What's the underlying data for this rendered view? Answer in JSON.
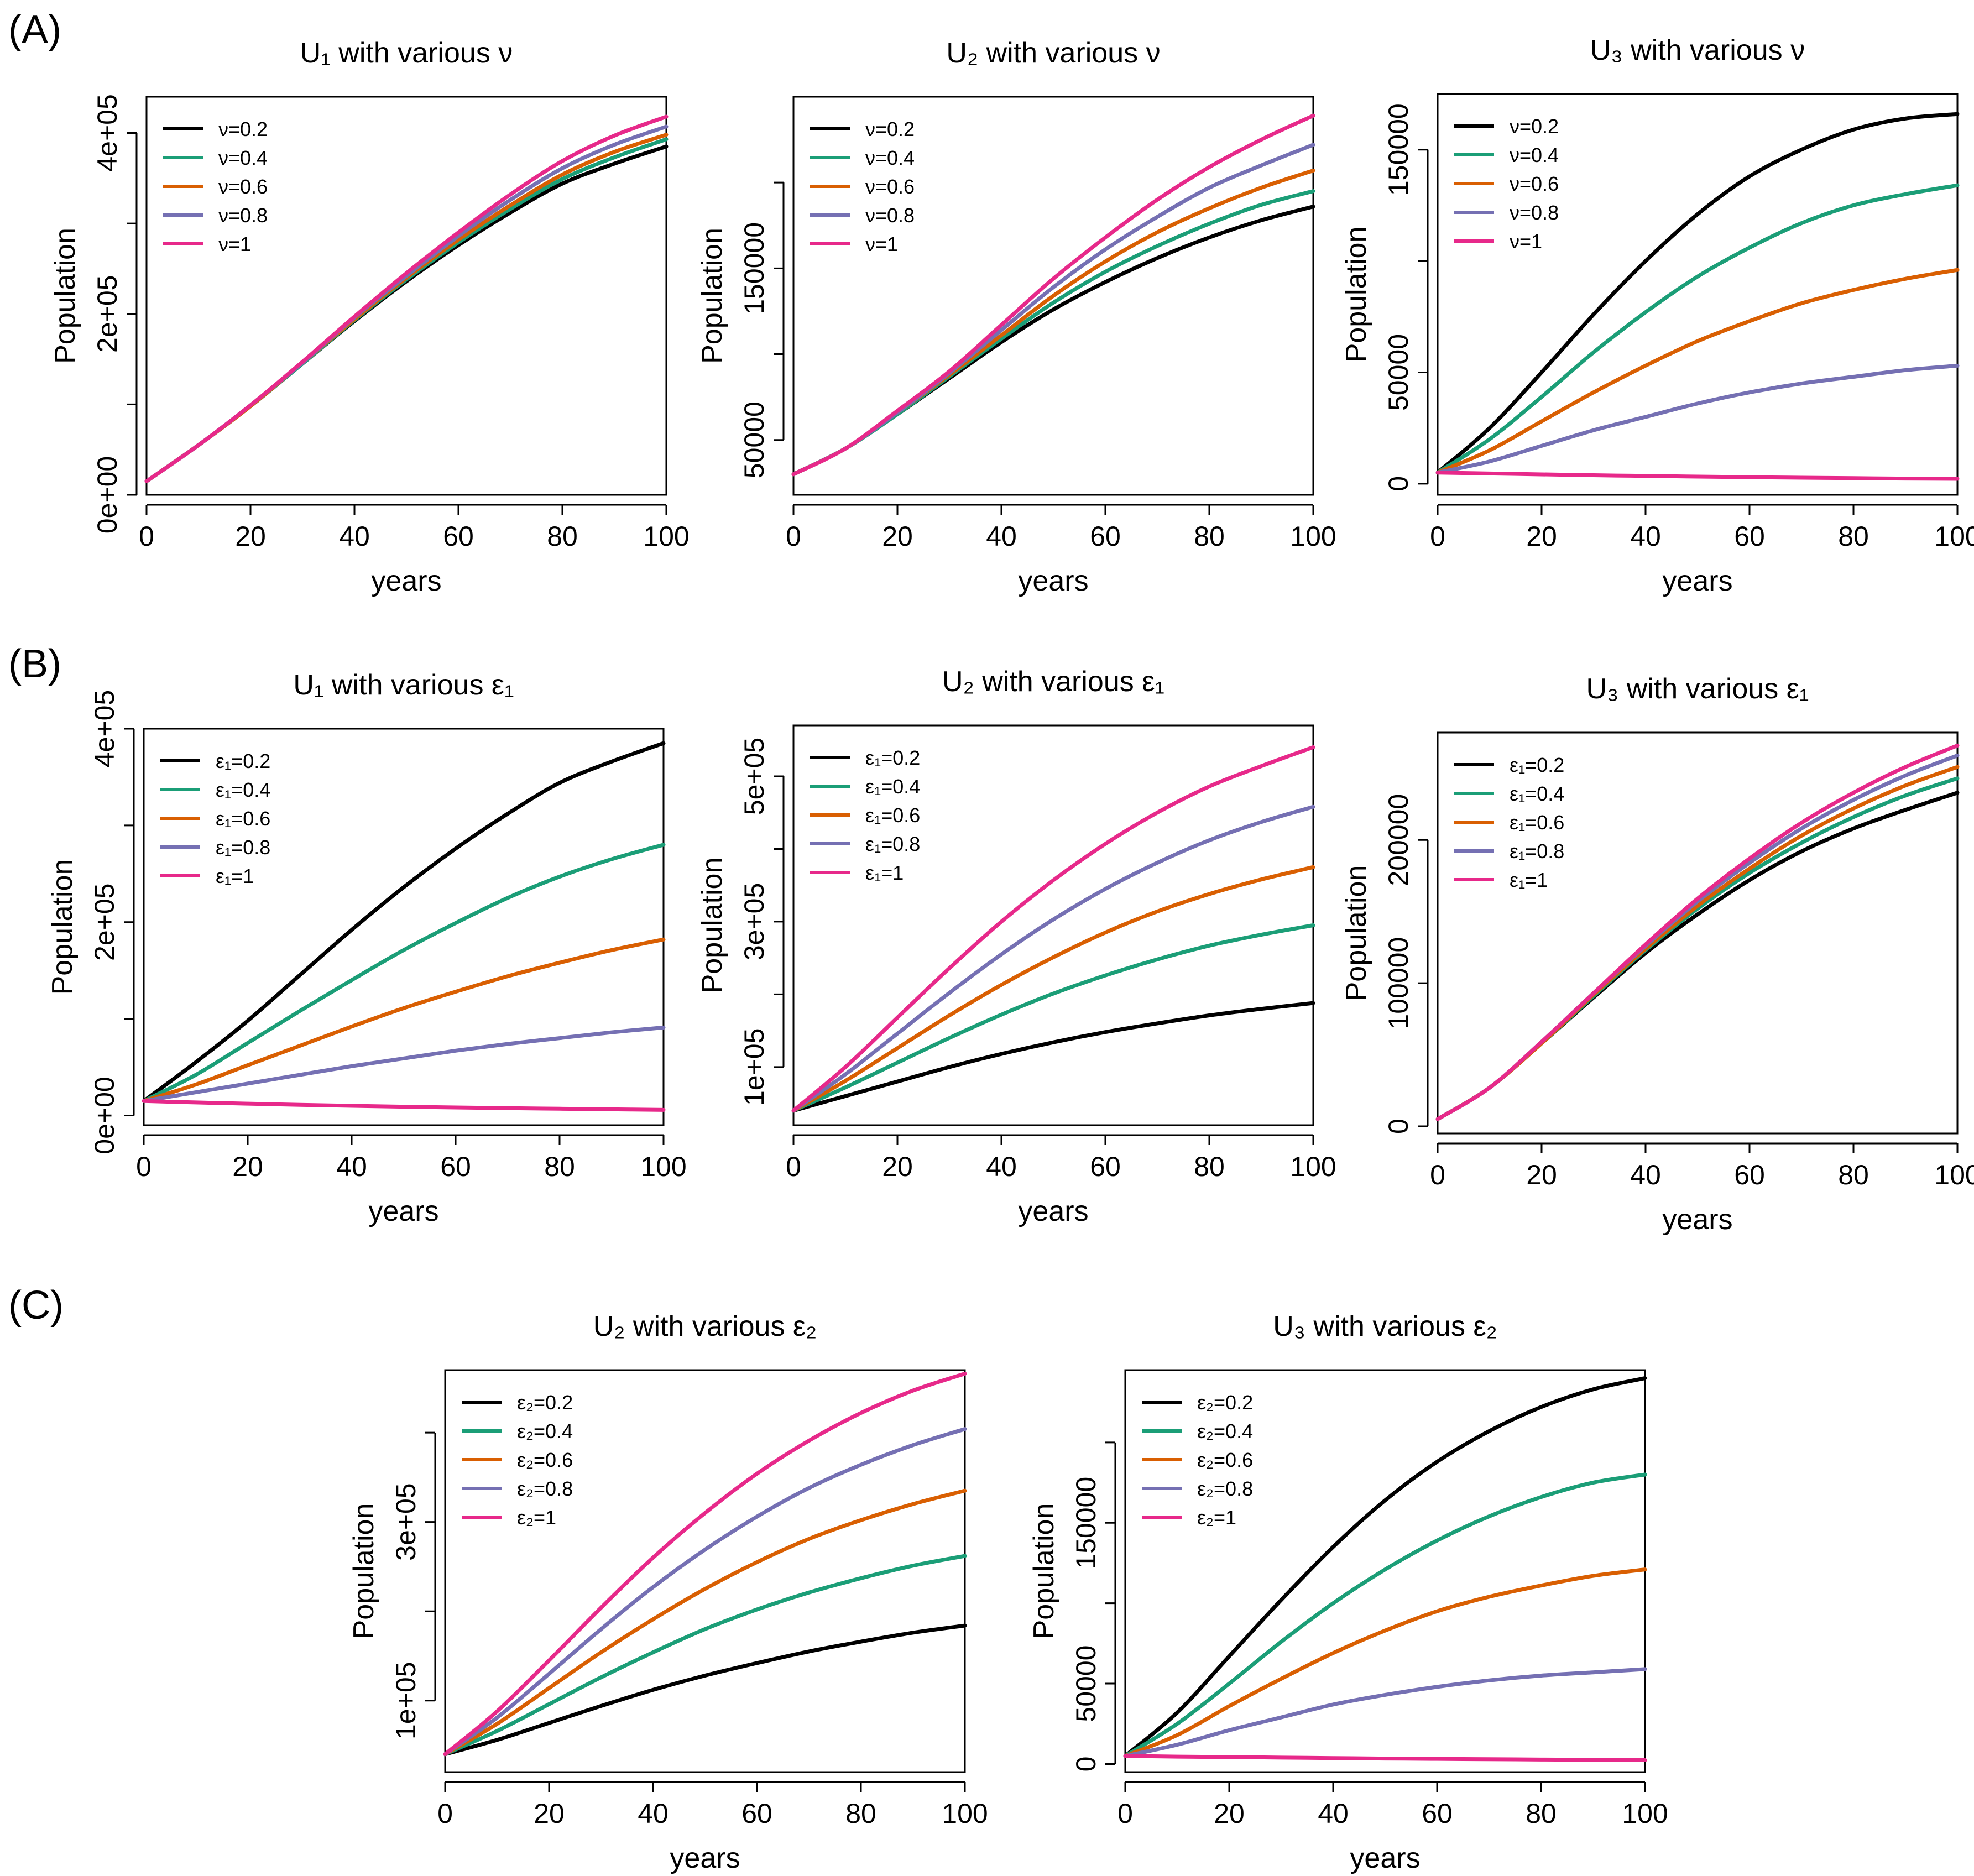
{
  "figure": {
    "panel_labels": [
      "(A)",
      "(B)",
      "(C)"
    ]
  },
  "colors": {
    "black": "#000000",
    "green": "#1b9e77",
    "orange": "#d95f02",
    "purple": "#7570b3",
    "pink": "#e7298a"
  },
  "chart_data": [
    {
      "id": "a1",
      "type": "line",
      "title": "U₁ with various ν",
      "xlabel": "years",
      "ylabel": "Population",
      "xlim": [
        0,
        100
      ],
      "ylim": [
        0,
        440000
      ],
      "x_ticks": [
        0,
        20,
        40,
        60,
        80,
        100
      ],
      "y_ticks": [
        0,
        100000,
        200000,
        300000,
        400000
      ],
      "y_tick_labels": [
        "0e+00",
        "",
        "2e+05",
        "",
        "4e+05"
      ],
      "x": [
        0,
        10,
        20,
        30,
        40,
        50,
        60,
        70,
        80,
        90,
        100
      ],
      "series": [
        {
          "name": "ν=0.2",
          "color": "#000000",
          "values": [
            15000,
            55000,
            98000,
            145000,
            192000,
            236000,
            276000,
            312000,
            344000,
            366000,
            385000
          ]
        },
        {
          "name": "ν=0.4",
          "color": "#1b9e77",
          "values": [
            15000,
            55000,
            98000,
            145000,
            193000,
            238000,
            279000,
            316000,
            349000,
            373000,
            393000
          ]
        },
        {
          "name": "ν=0.6",
          "color": "#d95f02",
          "values": [
            15000,
            55000,
            98000,
            146000,
            194000,
            240000,
            282000,
            320000,
            354000,
            379000,
            398000
          ]
        },
        {
          "name": "ν=0.8",
          "color": "#7570b3",
          "values": [
            15000,
            55000,
            99000,
            146000,
            196000,
            242000,
            286000,
            326000,
            361000,
            387000,
            407000
          ]
        },
        {
          "name": "ν=1",
          "color": "#e7298a",
          "values": [
            15000,
            55000,
            99000,
            147000,
            197000,
            245000,
            290000,
            332000,
            369000,
            397000,
            418000
          ]
        }
      ]
    },
    {
      "id": "a2",
      "type": "line",
      "title": "U₂ with various ν",
      "xlabel": "years",
      "ylabel": "Population",
      "xlim": [
        0,
        100
      ],
      "ylim": [
        18000,
        250000
      ],
      "x_ticks": [
        0,
        20,
        40,
        60,
        80,
        100
      ],
      "y_ticks": [
        50000,
        100000,
        150000,
        200000
      ],
      "y_tick_labels": [
        "50000",
        "",
        "150000",
        ""
      ],
      "x": [
        0,
        10,
        20,
        30,
        40,
        50,
        60,
        70,
        80,
        90,
        100
      ],
      "series": [
        {
          "name": "ν=0.2",
          "color": "#000000",
          "values": [
            30000,
            45000,
            65000,
            86000,
            107000,
            126000,
            142000,
            156000,
            168000,
            178000,
            186000
          ]
        },
        {
          "name": "ν=0.4",
          "color": "#1b9e77",
          "values": [
            30000,
            45000,
            65000,
            87000,
            109000,
            130000,
            148000,
            163000,
            176000,
            187000,
            195000
          ]
        },
        {
          "name": "ν=0.6",
          "color": "#d95f02",
          "values": [
            30000,
            45000,
            66000,
            88000,
            111000,
            134000,
            154000,
            171000,
            185000,
            197000,
            207000
          ]
        },
        {
          "name": "ν=0.8",
          "color": "#7570b3",
          "values": [
            30000,
            45000,
            66000,
            89000,
            114000,
            139000,
            161000,
            180000,
            197000,
            210000,
            222000
          ]
        },
        {
          "name": "ν=1",
          "color": "#e7298a",
          "values": [
            30000,
            45000,
            67000,
            90000,
            117000,
            144000,
            168000,
            190000,
            209000,
            225000,
            239000
          ]
        }
      ]
    },
    {
      "id": "a3",
      "type": "line",
      "title": "U₃ with various ν",
      "xlabel": "years",
      "ylabel": "Population",
      "xlim": [
        0,
        100
      ],
      "ylim": [
        -5000,
        175000
      ],
      "x_ticks": [
        0,
        20,
        40,
        60,
        80,
        100
      ],
      "y_ticks": [
        0,
        50000,
        100000,
        150000
      ],
      "y_tick_labels": [
        "0",
        "50000",
        "",
        "150000"
      ],
      "x": [
        0,
        10,
        20,
        30,
        40,
        50,
        60,
        70,
        80,
        90,
        100
      ],
      "series": [
        {
          "name": "ν=0.2",
          "color": "#000000",
          "values": [
            5000,
            25000,
            50000,
            76000,
            100000,
            121000,
            138000,
            150000,
            159000,
            164000,
            166000
          ]
        },
        {
          "name": "ν=0.4",
          "color": "#1b9e77",
          "values": [
            5000,
            20000,
            39000,
            59000,
            77000,
            93000,
            106000,
            117000,
            125000,
            130000,
            134000
          ]
        },
        {
          "name": "ν=0.6",
          "color": "#d95f02",
          "values": [
            5000,
            15000,
            28000,
            41000,
            53000,
            64000,
            73000,
            81000,
            87000,
            92000,
            96000
          ]
        },
        {
          "name": "ν=0.8",
          "color": "#7570b3",
          "values": [
            5000,
            10000,
            17000,
            24000,
            30000,
            36000,
            41000,
            45000,
            48000,
            51000,
            53000
          ]
        },
        {
          "name": "ν=1",
          "color": "#e7298a",
          "values": [
            5000,
            4600,
            4200,
            3800,
            3500,
            3200,
            2900,
            2700,
            2500,
            2300,
            2200
          ]
        }
      ]
    },
    {
      "id": "b1",
      "type": "line",
      "title": "U₁ with various ε₁",
      "xlabel": "years",
      "ylabel": "Population",
      "xlim": [
        0,
        100
      ],
      "ylim": [
        -10000,
        400000
      ],
      "x_ticks": [
        0,
        20,
        40,
        60,
        80,
        100
      ],
      "y_ticks": [
        0,
        100000,
        200000,
        300000,
        400000
      ],
      "y_tick_labels": [
        "0e+00",
        "",
        "2e+05",
        "",
        "4e+05"
      ],
      "x": [
        0,
        10,
        20,
        30,
        40,
        50,
        60,
        70,
        80,
        90,
        100
      ],
      "series": [
        {
          "name": "ε₁=0.2",
          "color": "#000000",
          "values": [
            15000,
            55000,
            98000,
            145000,
            192000,
            236000,
            276000,
            312000,
            344000,
            366000,
            385000
          ]
        },
        {
          "name": "ε₁=0.4",
          "color": "#1b9e77",
          "values": [
            15000,
            42000,
            75000,
            108000,
            140000,
            171000,
            199000,
            225000,
            247000,
            265000,
            280000
          ]
        },
        {
          "name": "ε₁=0.6",
          "color": "#d95f02",
          "values": [
            15000,
            32000,
            52000,
            72000,
            92000,
            111000,
            128000,
            144000,
            158000,
            171000,
            182000
          ]
        },
        {
          "name": "ε₁=0.8",
          "color": "#7570b3",
          "values": [
            15000,
            24000,
            33000,
            42000,
            51000,
            59000,
            67000,
            74000,
            80000,
            86000,
            91000
          ]
        },
        {
          "name": "ε₁=1",
          "color": "#e7298a",
          "values": [
            15000,
            13500,
            12200,
            11000,
            10000,
            9100,
            8300,
            7600,
            7000,
            6400,
            5800
          ]
        }
      ]
    },
    {
      "id": "b2",
      "type": "line",
      "title": "U₂ with various ε₁",
      "xlabel": "years",
      "ylabel": "Population",
      "xlim": [
        0,
        100
      ],
      "ylim": [
        20000,
        570000
      ],
      "x_ticks": [
        0,
        20,
        40,
        60,
        80,
        100
      ],
      "y_ticks": [
        100000,
        200000,
        300000,
        400000,
        500000
      ],
      "y_tick_labels": [
        "1e+05",
        "",
        "3e+05",
        "",
        "5e+05"
      ],
      "x": [
        0,
        10,
        20,
        30,
        40,
        50,
        60,
        70,
        80,
        90,
        100
      ],
      "series": [
        {
          "name": "ε₁=0.2",
          "color": "#000000",
          "values": [
            40000,
            60000,
            80000,
            100000,
            118000,
            134000,
            148000,
            160000,
            171000,
            180000,
            188000
          ]
        },
        {
          "name": "ε₁=0.4",
          "color": "#1b9e77",
          "values": [
            40000,
            72000,
            106000,
            140000,
            172000,
            201000,
            226000,
            248000,
            267000,
            282000,
            295000
          ]
        },
        {
          "name": "ε₁=0.6",
          "color": "#d95f02",
          "values": [
            40000,
            81000,
            126000,
            171000,
            213000,
            251000,
            285000,
            314000,
            338000,
            358000,
            375000
          ]
        },
        {
          "name": "ε₁=0.8",
          "color": "#7570b3",
          "values": [
            40000,
            90000,
            146000,
            202000,
            255000,
            303000,
            345000,
            381000,
            412000,
            437000,
            458000
          ]
        },
        {
          "name": "ε₁=1",
          "color": "#e7298a",
          "values": [
            40000,
            100000,
            168000,
            236000,
            300000,
            357000,
            407000,
            450000,
            486000,
            514000,
            540000
          ]
        }
      ]
    },
    {
      "id": "b3",
      "type": "line",
      "title": "U₃ with various ε₁",
      "xlabel": "years",
      "ylabel": "Population",
      "xlim": [
        0,
        100
      ],
      "ylim": [
        -5000,
        275000
      ],
      "x_ticks": [
        0,
        20,
        40,
        60,
        80,
        100
      ],
      "y_ticks": [
        0,
        100000,
        200000
      ],
      "y_tick_labels": [
        "0",
        "100000",
        "200000"
      ],
      "x": [
        0,
        10,
        20,
        30,
        40,
        50,
        60,
        70,
        80,
        90,
        100
      ],
      "series": [
        {
          "name": "ε₁=0.2",
          "color": "#000000",
          "values": [
            5000,
            27000,
            58000,
            90000,
            121000,
            148000,
            172000,
            192000,
            208000,
            221000,
            233000
          ]
        },
        {
          "name": "ε₁=0.4",
          "color": "#1b9e77",
          "values": [
            5000,
            27000,
            58000,
            91000,
            123000,
            152000,
            177000,
            198000,
            216000,
            231000,
            243000
          ]
        },
        {
          "name": "ε₁=0.6",
          "color": "#d95f02",
          "values": [
            5000,
            27000,
            58000,
            92000,
            124000,
            154000,
            180000,
            203000,
            222000,
            238000,
            251000
          ]
        },
        {
          "name": "ε₁=0.8",
          "color": "#7570b3",
          "values": [
            5000,
            27000,
            59000,
            93000,
            126000,
            157000,
            184000,
            208000,
            228000,
            245000,
            259000
          ]
        },
        {
          "name": "ε₁=1",
          "color": "#e7298a",
          "values": [
            5000,
            27000,
            59000,
            93000,
            127000,
            159000,
            187000,
            212000,
            233000,
            251000,
            266000
          ]
        }
      ]
    },
    {
      "id": "c2",
      "type": "line",
      "title": "U₂ with various ε₂",
      "xlabel": "years",
      "ylabel": "Population",
      "xlim": [
        0,
        100
      ],
      "ylim": [
        20000,
        470000
      ],
      "x_ticks": [
        0,
        20,
        40,
        60,
        80,
        100
      ],
      "y_ticks": [
        100000,
        200000,
        300000,
        400000
      ],
      "y_tick_labels": [
        "1e+05",
        "",
        "3e+05",
        ""
      ],
      "x": [
        0,
        10,
        20,
        30,
        40,
        50,
        60,
        70,
        80,
        90,
        100
      ],
      "series": [
        {
          "name": "ε₂=0.2",
          "color": "#000000",
          "values": [
            40000,
            56000,
            75000,
            94000,
            112000,
            128000,
            142000,
            155000,
            166000,
            176000,
            184000
          ]
        },
        {
          "name": "ε₂=0.4",
          "color": "#1b9e77",
          "values": [
            40000,
            66000,
            96000,
            126000,
            154000,
            180000,
            202000,
            221000,
            237000,
            251000,
            262000
          ]
        },
        {
          "name": "ε₂=0.6",
          "color": "#d95f02",
          "values": [
            40000,
            74000,
            114000,
            154000,
            191000,
            225000,
            255000,
            281000,
            302000,
            320000,
            335000
          ]
        },
        {
          "name": "ε₂=0.8",
          "color": "#7570b3",
          "values": [
            40000,
            81000,
            130000,
            180000,
            227000,
            269000,
            306000,
            338000,
            364000,
            386000,
            404000
          ]
        },
        {
          "name": "ε₂=1",
          "color": "#e7298a",
          "values": [
            40000,
            88000,
            145000,
            204000,
            260000,
            310000,
            354000,
            391000,
            422000,
            447000,
            466000
          ]
        }
      ]
    },
    {
      "id": "c3",
      "type": "line",
      "title": "U₃ with various ε₂",
      "xlabel": "years",
      "ylabel": "Population",
      "xlim": [
        0,
        100
      ],
      "ylim": [
        -5000,
        245000
      ],
      "x_ticks": [
        0,
        20,
        40,
        60,
        80,
        100
      ],
      "y_ticks": [
        0,
        50000,
        100000,
        150000,
        200000
      ],
      "y_tick_labels": [
        "0",
        "50000",
        "",
        "150000",
        ""
      ],
      "x": [
        0,
        10,
        20,
        30,
        40,
        50,
        60,
        70,
        80,
        90,
        100
      ],
      "series": [
        {
          "name": "ε₂=0.2",
          "color": "#000000",
          "values": [
            5000,
            32000,
            67000,
            102000,
            135000,
            164000,
            188000,
            207000,
            222000,
            233000,
            240000
          ]
        },
        {
          "name": "ε₂=0.4",
          "color": "#1b9e77",
          "values": [
            5000,
            25000,
            50000,
            76000,
            100000,
            121000,
            139000,
            154000,
            166000,
            175000,
            180000
          ]
        },
        {
          "name": "ε₂=0.6",
          "color": "#d95f02",
          "values": [
            5000,
            18000,
            36000,
            53000,
            69000,
            83000,
            95000,
            104000,
            111000,
            117000,
            121000
          ]
        },
        {
          "name": "ε₂=0.8",
          "color": "#7570b3",
          "values": [
            5000,
            12000,
            21000,
            29000,
            37000,
            43000,
            48000,
            52000,
            55000,
            57000,
            59000
          ]
        },
        {
          "name": "ε₂=1",
          "color": "#e7298a",
          "values": [
            5000,
            4600,
            4300,
            4000,
            3700,
            3400,
            3200,
            3000,
            2800,
            2600,
            2400
          ]
        }
      ]
    }
  ]
}
